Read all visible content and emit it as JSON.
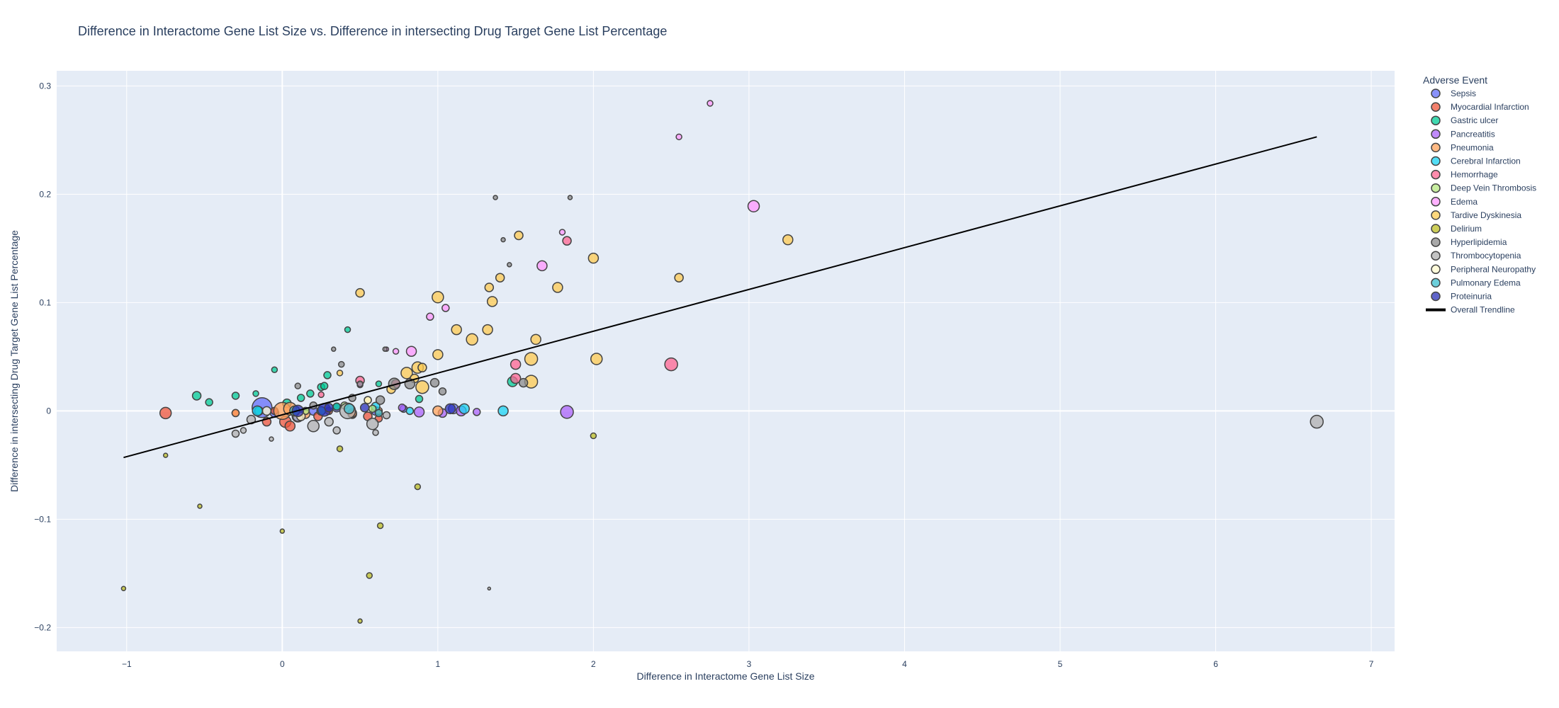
{
  "chart_data": {
    "type": "scatter",
    "title": "Difference in Interactome Gene List Size vs. Difference in intersecting Drug Target Gene List Percentage",
    "xlabel": "Difference in Interactome Gene List Size",
    "ylabel": "Difference in intersecting Drug Target Gene List Percentage",
    "xlim": [
      -1.45,
      7.15
    ],
    "ylim": [
      -0.222,
      0.314
    ],
    "xticks": [
      -1,
      0,
      1,
      2,
      3,
      4,
      5,
      6,
      7
    ],
    "yticks": [
      -0.2,
      -0.1,
      0,
      0.1,
      0.2,
      0.3
    ],
    "grid": true,
    "legend_position": "right",
    "legend_title": "Adverse Event",
    "colors": {
      "plot_bg": "#e5ecf6",
      "grid": "#ffffff",
      "marker_outline": "#444444",
      "trendline": "#000000"
    },
    "series": [
      {
        "name": "Sepsis",
        "color": "#636efa",
        "points": [
          [
            -0.13,
            0.003,
            14
          ],
          [
            0.35,
            0.003,
            6
          ],
          [
            0.78,
            0.002,
            5
          ],
          [
            0.6,
            0.0,
            6
          ],
          [
            1.1,
            0.002,
            7
          ],
          [
            0.2,
            0.0,
            6
          ],
          [
            0.1,
            -0.005,
            8
          ],
          [
            -0.05,
            -0.002,
            6
          ]
        ]
      },
      {
        "name": "Myocardial Infarction",
        "color": "#ef553b",
        "points": [
          [
            -0.75,
            -0.002,
            8
          ],
          [
            -0.3,
            -0.002,
            5
          ],
          [
            0.02,
            -0.01,
            8
          ],
          [
            0.05,
            -0.014,
            7
          ],
          [
            -0.1,
            -0.01,
            6
          ],
          [
            0.12,
            -0.005,
            6
          ],
          [
            0.23,
            -0.005,
            6
          ],
          [
            0.3,
            0.0,
            5
          ],
          [
            0.45,
            -0.003,
            6
          ],
          [
            0.55,
            -0.005,
            6
          ],
          [
            0.62,
            -0.007,
            5
          ],
          [
            -0.05,
            0.0,
            5
          ],
          [
            0.08,
            -0.002,
            5
          ]
        ]
      },
      {
        "name": "Gastric ulcer",
        "color": "#00cc96",
        "points": [
          [
            -0.55,
            0.014,
            6
          ],
          [
            -0.47,
            0.008,
            5
          ],
          [
            -0.3,
            0.014,
            5
          ],
          [
            -0.17,
            0.016,
            4
          ],
          [
            -0.05,
            0.038,
            4
          ],
          [
            0.03,
            0.007,
            6
          ],
          [
            0.18,
            0.016,
            5
          ],
          [
            0.25,
            0.022,
            5
          ],
          [
            0.27,
            0.023,
            5
          ],
          [
            0.29,
            0.033,
            5
          ],
          [
            0.42,
            0.075,
            4
          ],
          [
            0.62,
            0.025,
            4
          ],
          [
            0.88,
            0.011,
            5
          ],
          [
            1.48,
            0.027,
            7
          ],
          [
            0.12,
            0.012,
            5
          ],
          [
            0.35,
            0.004,
            5
          ],
          [
            -0.15,
            0.0,
            6
          ]
        ]
      },
      {
        "name": "Pancreatitis",
        "color": "#ab63fa",
        "points": [
          [
            0.88,
            -0.001,
            7
          ],
          [
            1.03,
            -0.002,
            6
          ],
          [
            1.15,
            0.0,
            7
          ],
          [
            1.25,
            -0.001,
            5
          ],
          [
            1.83,
            -0.001,
            9
          ],
          [
            0.77,
            0.003,
            5
          ]
        ]
      },
      {
        "name": "Pneumonia",
        "color": "#ffa15a",
        "points": [
          [
            -0.3,
            -0.002,
            5
          ],
          [
            0.0,
            0.0,
            12
          ],
          [
            0.05,
            0.002,
            9
          ],
          [
            0.15,
            -0.003,
            6
          ],
          [
            0.45,
            -0.002,
            6
          ],
          [
            0.62,
            0.0,
            5
          ],
          [
            1.0,
            0.0,
            7
          ]
        ]
      },
      {
        "name": "Cerebral Infarction",
        "color": "#19d3f3",
        "points": [
          [
            -0.16,
            0.0,
            7
          ],
          [
            0.6,
            0.004,
            6
          ],
          [
            0.82,
            0.0,
            5
          ],
          [
            1.17,
            0.002,
            7
          ],
          [
            1.42,
            0.0,
            7
          ],
          [
            0.25,
            0.0,
            6
          ]
        ]
      },
      {
        "name": "Hemorrhage",
        "color": "#ff6692",
        "points": [
          [
            0.5,
            0.028,
            6
          ],
          [
            0.73,
            0.025,
            6
          ],
          [
            1.5,
            0.043,
            7
          ],
          [
            1.5,
            0.03,
            7
          ],
          [
            1.83,
            0.157,
            6
          ],
          [
            2.5,
            0.043,
            9
          ],
          [
            0.25,
            0.015,
            4
          ]
        ]
      },
      {
        "name": "Deep Vein Thrombosis",
        "color": "#b6e880",
        "points": [
          [
            0.15,
            0.0,
            5
          ],
          [
            0.4,
            0.005,
            5
          ],
          [
            0.58,
            0.002,
            5
          ]
        ]
      },
      {
        "name": "Edema",
        "color": "#ff97ff",
        "points": [
          [
            0.5,
            0.024,
            4
          ],
          [
            0.73,
            0.055,
            4
          ],
          [
            0.83,
            0.055,
            7
          ],
          [
            0.95,
            0.087,
            5
          ],
          [
            1.05,
            0.095,
            5
          ],
          [
            1.67,
            0.134,
            7
          ],
          [
            1.8,
            0.165,
            4
          ],
          [
            2.55,
            0.253,
            4
          ],
          [
            2.75,
            0.284,
            4
          ],
          [
            3.03,
            0.189,
            8
          ],
          [
            0.67,
            0.057,
            3
          ]
        ]
      },
      {
        "name": "Tardive Dyskinesia",
        "color": "#fecb52",
        "points": [
          [
            0.5,
            0.109,
            6
          ],
          [
            0.8,
            0.035,
            8
          ],
          [
            0.87,
            0.04,
            8
          ],
          [
            0.9,
            0.022,
            9
          ],
          [
            0.9,
            0.04,
            6
          ],
          [
            1.0,
            0.105,
            8
          ],
          [
            1.0,
            0.052,
            7
          ],
          [
            1.12,
            0.075,
            7
          ],
          [
            1.22,
            0.066,
            8
          ],
          [
            1.32,
            0.075,
            7
          ],
          [
            1.33,
            0.114,
            6
          ],
          [
            1.35,
            0.101,
            7
          ],
          [
            1.4,
            0.123,
            6
          ],
          [
            1.52,
            0.162,
            6
          ],
          [
            1.6,
            0.048,
            9
          ],
          [
            1.6,
            0.027,
            9
          ],
          [
            1.63,
            0.066,
            7
          ],
          [
            1.77,
            0.114,
            7
          ],
          [
            2.0,
            0.141,
            7
          ],
          [
            2.02,
            0.048,
            8
          ],
          [
            2.55,
            0.123,
            6
          ],
          [
            3.25,
            0.158,
            7
          ],
          [
            0.37,
            0.035,
            4
          ],
          [
            0.55,
            0.01,
            5
          ],
          [
            0.7,
            0.02,
            6
          ],
          [
            0.85,
            0.03,
            6
          ]
        ]
      },
      {
        "name": "Delirium",
        "color": "#bcbd22",
        "points": [
          [
            -1.02,
            -0.164,
            3
          ],
          [
            -0.75,
            -0.041,
            3
          ],
          [
            -0.53,
            -0.088,
            3
          ],
          [
            0.0,
            -0.111,
            3
          ],
          [
            0.37,
            -0.035,
            4
          ],
          [
            0.5,
            -0.194,
            3
          ],
          [
            0.56,
            -0.152,
            4
          ],
          [
            0.63,
            -0.106,
            4
          ],
          [
            0.87,
            -0.07,
            4
          ],
          [
            2.0,
            -0.023,
            4
          ]
        ]
      },
      {
        "name": "Hyperlipidemia",
        "color": "#8c8c8c",
        "points": [
          [
            0.1,
            0.023,
            4
          ],
          [
            0.33,
            0.057,
            3
          ],
          [
            0.38,
            0.043,
            4
          ],
          [
            0.5,
            0.025,
            4
          ],
          [
            0.63,
            0.01,
            6
          ],
          [
            0.72,
            0.025,
            8
          ],
          [
            0.82,
            0.025,
            7
          ],
          [
            0.98,
            0.026,
            6
          ],
          [
            1.03,
            0.018,
            5
          ],
          [
            1.42,
            0.158,
            3
          ],
          [
            1.46,
            0.135,
            3
          ],
          [
            1.55,
            0.026,
            6
          ],
          [
            1.85,
            0.197,
            3
          ],
          [
            1.37,
            0.197,
            3
          ],
          [
            0.66,
            0.057,
            3
          ],
          [
            0.2,
            0.005,
            5
          ],
          [
            0.45,
            0.012,
            5
          ]
        ]
      },
      {
        "name": "Thrombocytopenia",
        "color": "#b0b0b0",
        "points": [
          [
            -0.3,
            -0.021,
            5
          ],
          [
            -0.25,
            -0.018,
            4
          ],
          [
            -0.2,
            -0.008,
            6
          ],
          [
            0.2,
            -0.014,
            8
          ],
          [
            0.35,
            -0.018,
            5
          ],
          [
            0.3,
            -0.01,
            6
          ],
          [
            0.42,
            0.0,
            11
          ],
          [
            0.58,
            -0.012,
            8
          ],
          [
            0.6,
            -0.02,
            4
          ],
          [
            0.67,
            -0.004,
            5
          ],
          [
            6.65,
            -0.01,
            9
          ],
          [
            1.33,
            -0.164,
            2
          ],
          [
            -0.07,
            -0.026,
            3
          ],
          [
            0.1,
            -0.005,
            7
          ]
        ]
      },
      {
        "name": "Peripheral Neuropathy",
        "color": "#fffacd",
        "points": [
          [
            0.12,
            -0.005,
            6
          ],
          [
            0.55,
            0.01,
            5
          ],
          [
            -0.1,
            0.0,
            6
          ]
        ]
      },
      {
        "name": "Pulmonary Edema",
        "color": "#3bbfcf",
        "points": [
          [
            0.08,
            0.0,
            7
          ],
          [
            0.43,
            0.002,
            7
          ],
          [
            0.62,
            -0.002,
            5
          ],
          [
            0.25,
            0.0,
            6
          ]
        ]
      },
      {
        "name": "Proteinuria",
        "color": "#2a30b8",
        "points": [
          [
            0.1,
            0.0,
            8
          ],
          [
            0.27,
            0.001,
            9
          ],
          [
            0.3,
            0.003,
            6
          ],
          [
            0.53,
            0.003,
            6
          ],
          [
            1.08,
            0.002,
            7
          ]
        ]
      }
    ],
    "trendline": {
      "name": "Overall Trendline",
      "x": [
        -1.02,
        6.65
      ],
      "y": [
        -0.043,
        0.253
      ]
    }
  }
}
